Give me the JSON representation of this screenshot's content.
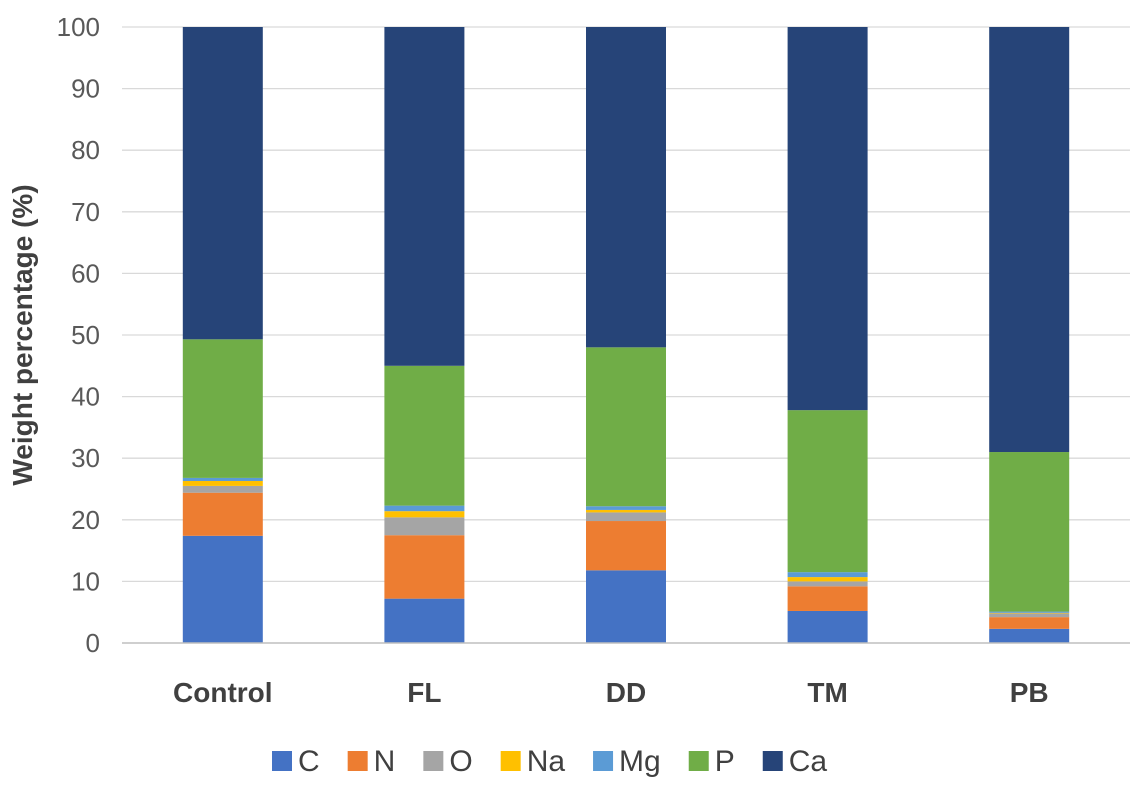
{
  "chart_data": {
    "type": "bar",
    "stacked": true,
    "title": "",
    "xlabel": "",
    "ylabel": "Weight percentage (%)",
    "ylim": [
      0,
      100
    ],
    "yticks": [
      "0",
      "10",
      "20",
      "30",
      "40",
      "50",
      "60",
      "70",
      "80",
      "90",
      "100"
    ],
    "categories": [
      "Control",
      "FL",
      "DD",
      "TM",
      "PB"
    ],
    "grid": true,
    "legend_position": "bottom",
    "series": [
      {
        "name": "C",
        "color": "#4472C4",
        "values": [
          17.4,
          7.2,
          11.8,
          5.2,
          2.3
        ]
      },
      {
        "name": "N",
        "color": "#ED7D31",
        "values": [
          7.0,
          10.3,
          8.0,
          4.0,
          1.9
        ]
      },
      {
        "name": "O",
        "color": "#A5A5A5",
        "values": [
          1.1,
          2.9,
          1.4,
          0.8,
          0.6
        ]
      },
      {
        "name": "Na",
        "color": "#FFC000",
        "values": [
          0.8,
          1.0,
          0.4,
          0.7,
          0.1
        ]
      },
      {
        "name": "Mg",
        "color": "#5B9BD5",
        "values": [
          0.5,
          0.9,
          0.6,
          0.8,
          0.2
        ]
      },
      {
        "name": "P",
        "color": "#70AD47",
        "values": [
          22.5,
          22.7,
          25.8,
          26.3,
          25.9
        ]
      },
      {
        "name": "Ca",
        "color": "#264478",
        "values": [
          50.7,
          55.0,
          52.0,
          62.2,
          69.0
        ]
      }
    ]
  }
}
